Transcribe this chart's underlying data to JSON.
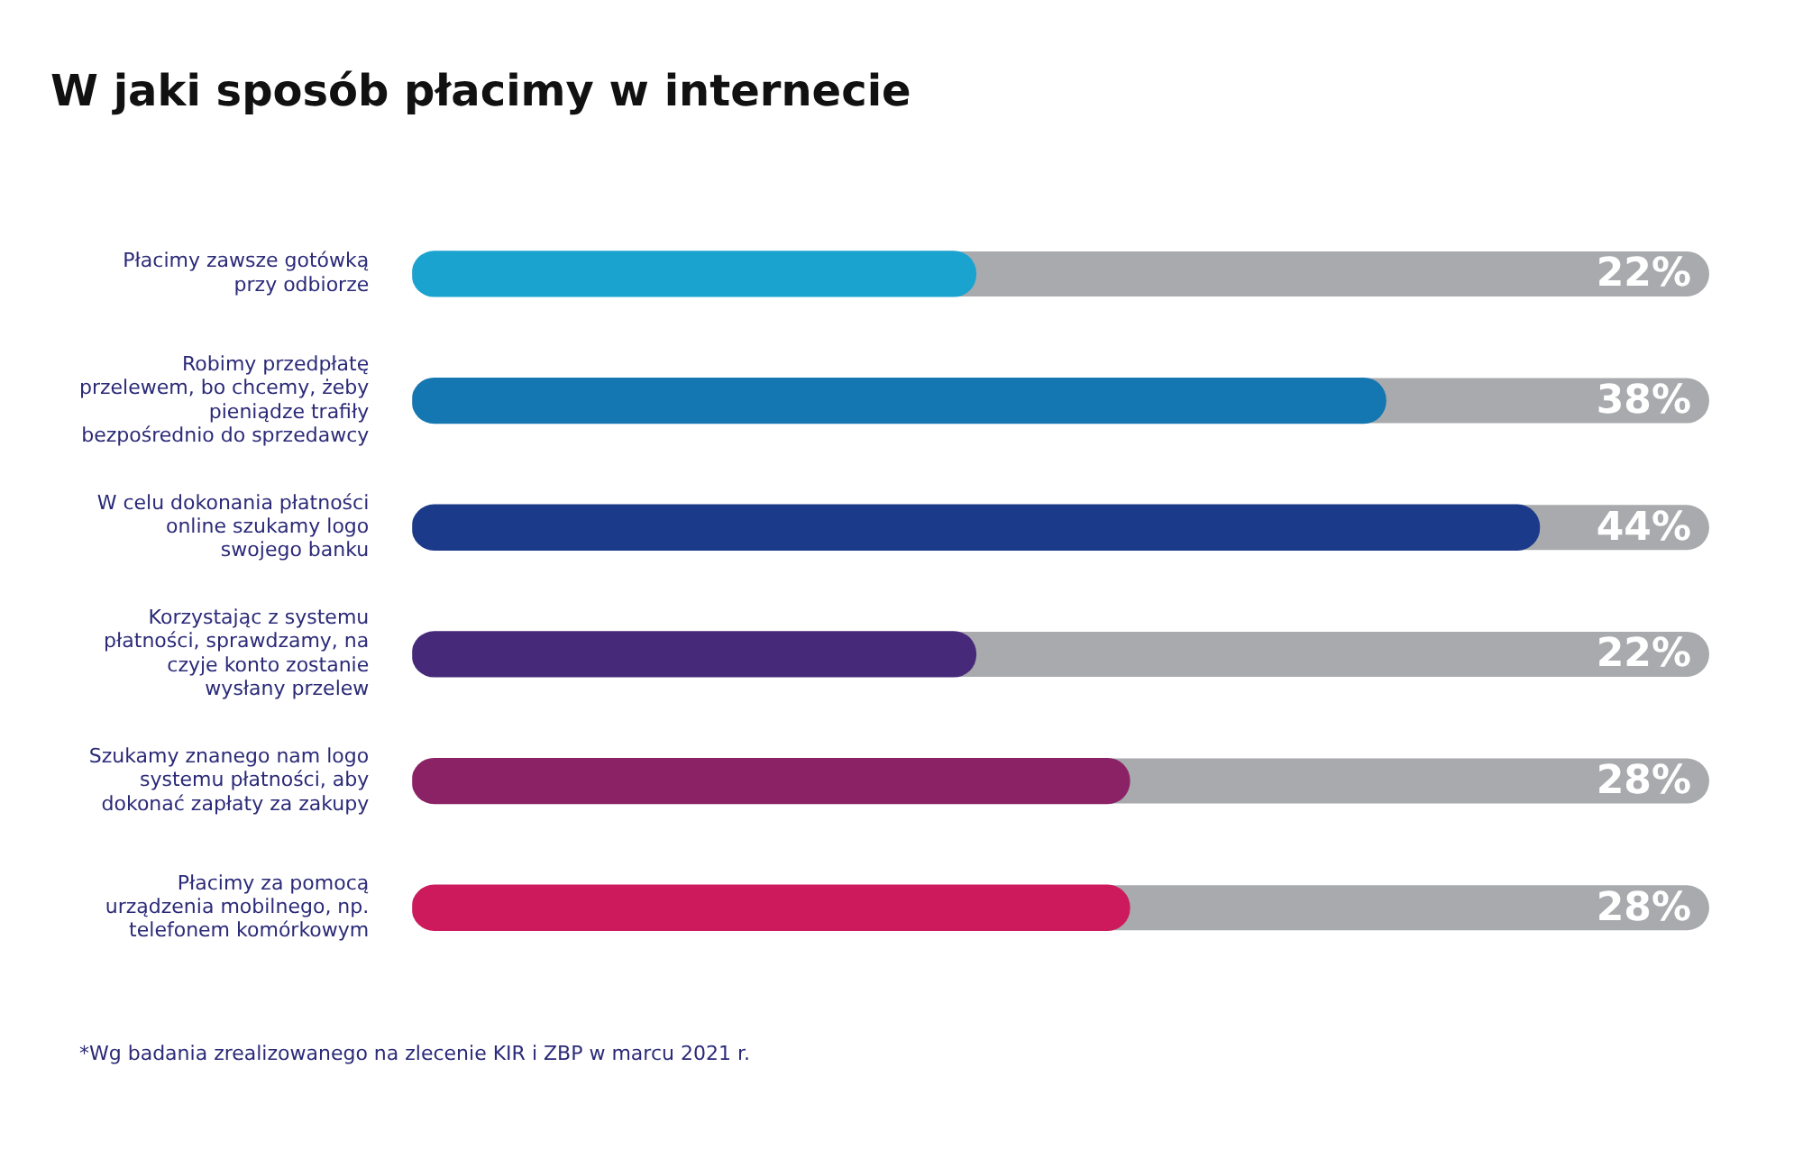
{
  "chart_data": {
    "type": "bar",
    "orientation": "horizontal",
    "title": "W jaki sposób płacimy w internecie",
    "categories": [
      "Płacimy zawsze gotówką przy odbiorze",
      "Robimy przedpłatę przelewem, bo chcemy, żeby pieniądze trafiły bezpośrednio do sprzedawcy",
      "W celu dokonania płatności online szukamy logo swojego banku",
      "Korzystając z systemu płatności, sprawdzamy, na czyje konto zostanie wysłany przelew",
      "Szukamy znanego nam logo systemu płatności, aby dokonać zapłaty za zakupy",
      "Płacimy za pomocą urządzenia mobilnego, np. telefonem komórkowym"
    ],
    "values": [
      22,
      38,
      44,
      22,
      28,
      28
    ],
    "colors": [
      "#1ba3cf",
      "#1577b1",
      "#1b3a8a",
      "#47297a",
      "#8b2266",
      "#cc1a5d"
    ],
    "value_labels": [
      "22%",
      "38%",
      "44%",
      "22%",
      "28%",
      "28%"
    ],
    "tick_labels": "y",
    "grid": false,
    "legend": false,
    "annotations": [
      "*Wg badania zrealizowanego na zlecenie KIR i ZBP w marcu 2021 r."
    ]
  }
}
